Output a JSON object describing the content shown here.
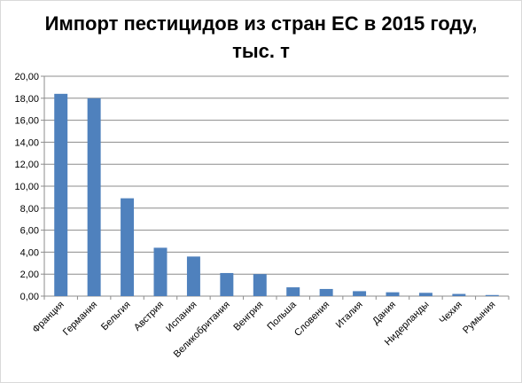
{
  "chart_data": {
    "type": "bar",
    "title_line1": "Импорт пестицидов из стран ЕС в 2015 году,",
    "title_line2": "тыс. т",
    "xlabel": "",
    "ylabel": "",
    "ylim": [
      0,
      20
    ],
    "y_ticks": [
      "0,00",
      "2,00",
      "4,00",
      "6,00",
      "8,00",
      "10,00",
      "12,00",
      "14,00",
      "16,00",
      "18,00",
      "20,00"
    ],
    "grid": true,
    "legend": "none",
    "bar_color": "#4f81bd",
    "categories": [
      "Франция",
      "Германия",
      "Бельгия",
      "Австрия",
      "Испания",
      "Великобритания",
      "Венгрия",
      "Польша",
      "Словения",
      "Италия",
      "Дания",
      "Нидерланды",
      "Чехия",
      "Румыния"
    ],
    "values": [
      18.4,
      18.0,
      8.9,
      4.4,
      3.6,
      2.1,
      2.0,
      0.8,
      0.65,
      0.45,
      0.35,
      0.3,
      0.2,
      0.1
    ]
  }
}
